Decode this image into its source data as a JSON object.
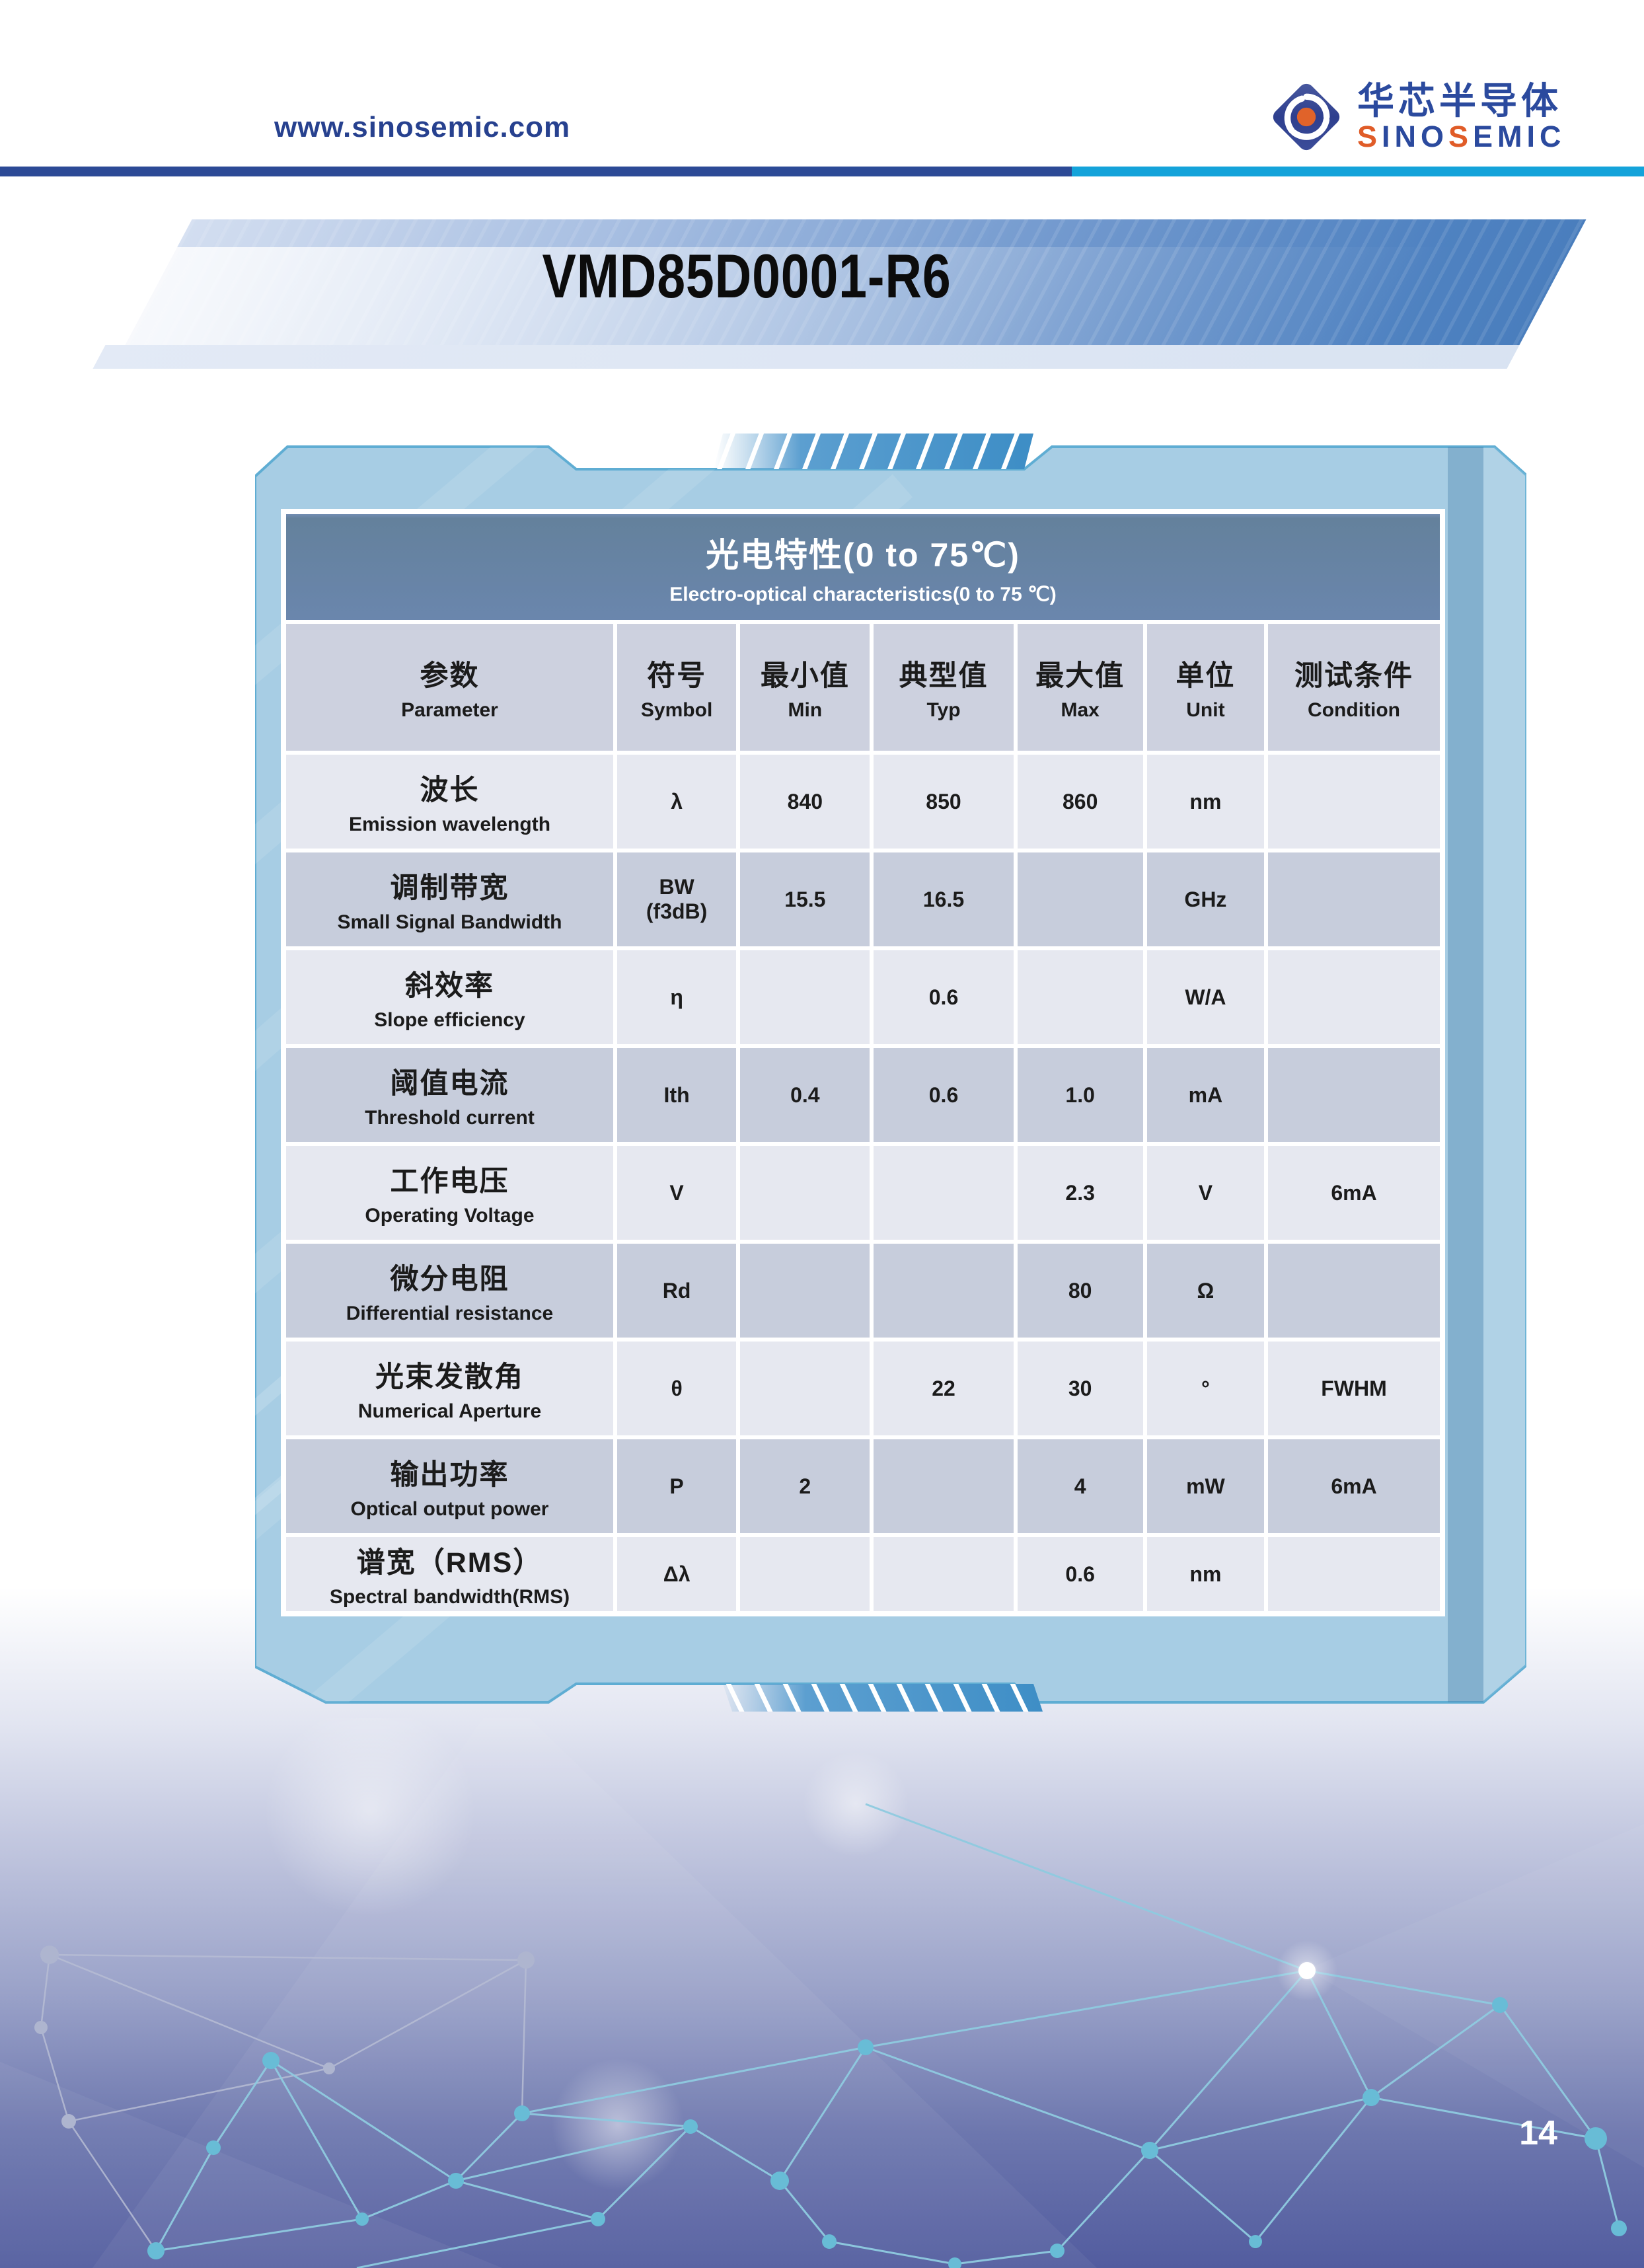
{
  "header": {
    "url": "www.sinosemic.com",
    "logo_cn": "华芯半导体",
    "logo_en_segments": [
      {
        "text": "S",
        "orange": true
      },
      {
        "text": "INO",
        "orange": false
      },
      {
        "text": "S",
        "orange": true
      },
      {
        "text": "EMIC",
        "orange": false
      }
    ]
  },
  "banner": {
    "title": "VMD85D0001-R6"
  },
  "table": {
    "title_cn": "光电特性(0 to 75℃)",
    "title_en": "Electro-optical characteristics(0 to 75 ℃)",
    "columns": [
      {
        "cn": "参数",
        "en": "Parameter"
      },
      {
        "cn": "符号",
        "en": "Symbol"
      },
      {
        "cn": "最小值",
        "en": "Min"
      },
      {
        "cn": "典型值",
        "en": "Typ"
      },
      {
        "cn": "最大值",
        "en": "Max"
      },
      {
        "cn": "单位",
        "en": "Unit"
      },
      {
        "cn": "测试条件",
        "en": "Condition"
      }
    ],
    "rows": [
      {
        "param_cn": "波长",
        "param_en": "Emission wavelength",
        "symbol": "λ",
        "min": "840",
        "typ": "850",
        "max": "860",
        "unit": "nm",
        "condition": ""
      },
      {
        "param_cn": "调制带宽",
        "param_en": "Small Signal Bandwidth",
        "symbol": "BW\n(f3dB)",
        "min": "15.5",
        "typ": "16.5",
        "max": "",
        "unit": "GHz",
        "condition": ""
      },
      {
        "param_cn": "斜效率",
        "param_en": "Slope efficiency",
        "symbol": "η",
        "min": "",
        "typ": "0.6",
        "max": "",
        "unit": "W/A",
        "condition": ""
      },
      {
        "param_cn": "阈值电流",
        "param_en": "Threshold current",
        "symbol": "Ith",
        "min": "0.4",
        "typ": "0.6",
        "max": "1.0",
        "unit": "mA",
        "condition": ""
      },
      {
        "param_cn": "工作电压",
        "param_en": "Operating Voltage",
        "symbol": "V",
        "min": "",
        "typ": "",
        "max": "2.3",
        "unit": "V",
        "condition": "6mA"
      },
      {
        "param_cn": "微分电阻",
        "param_en": "Differential resistance",
        "symbol": "Rd",
        "min": "",
        "typ": "",
        "max": "80",
        "unit": "Ω",
        "condition": ""
      },
      {
        "param_cn": "光束发散角",
        "param_en": "Numerical Aperture",
        "symbol": "θ",
        "min": "",
        "typ": "22",
        "max": "30",
        "unit": "°",
        "condition": "FWHM"
      },
      {
        "param_cn": "输出功率",
        "param_en": "Optical output power",
        "symbol": "P",
        "min": "2",
        "typ": "",
        "max": "4",
        "unit": "mW",
        "condition": "6mA"
      },
      {
        "param_cn": "谱宽（RMS）",
        "param_en": "Spectral bandwidth(RMS)",
        "symbol": "Δλ",
        "min": "",
        "typ": "",
        "max": "0.6",
        "unit": "nm",
        "condition": ""
      }
    ]
  },
  "footer": {
    "page_number": "14"
  },
  "colors": {
    "navy": "#2c4a96",
    "cyan": "#14a3da",
    "logo_blue": "#2b4a9e",
    "logo_orange": "#e05c28",
    "band_slate": "#6a86ad",
    "col_header_bg": "#cdd1df",
    "row_light": "#e6e8f0",
    "row_dark": "#c7cddc",
    "panel_fill": "#a7cde4",
    "panel_stroke": "#5fadd3",
    "bottom_indigo": "#525c9f"
  }
}
